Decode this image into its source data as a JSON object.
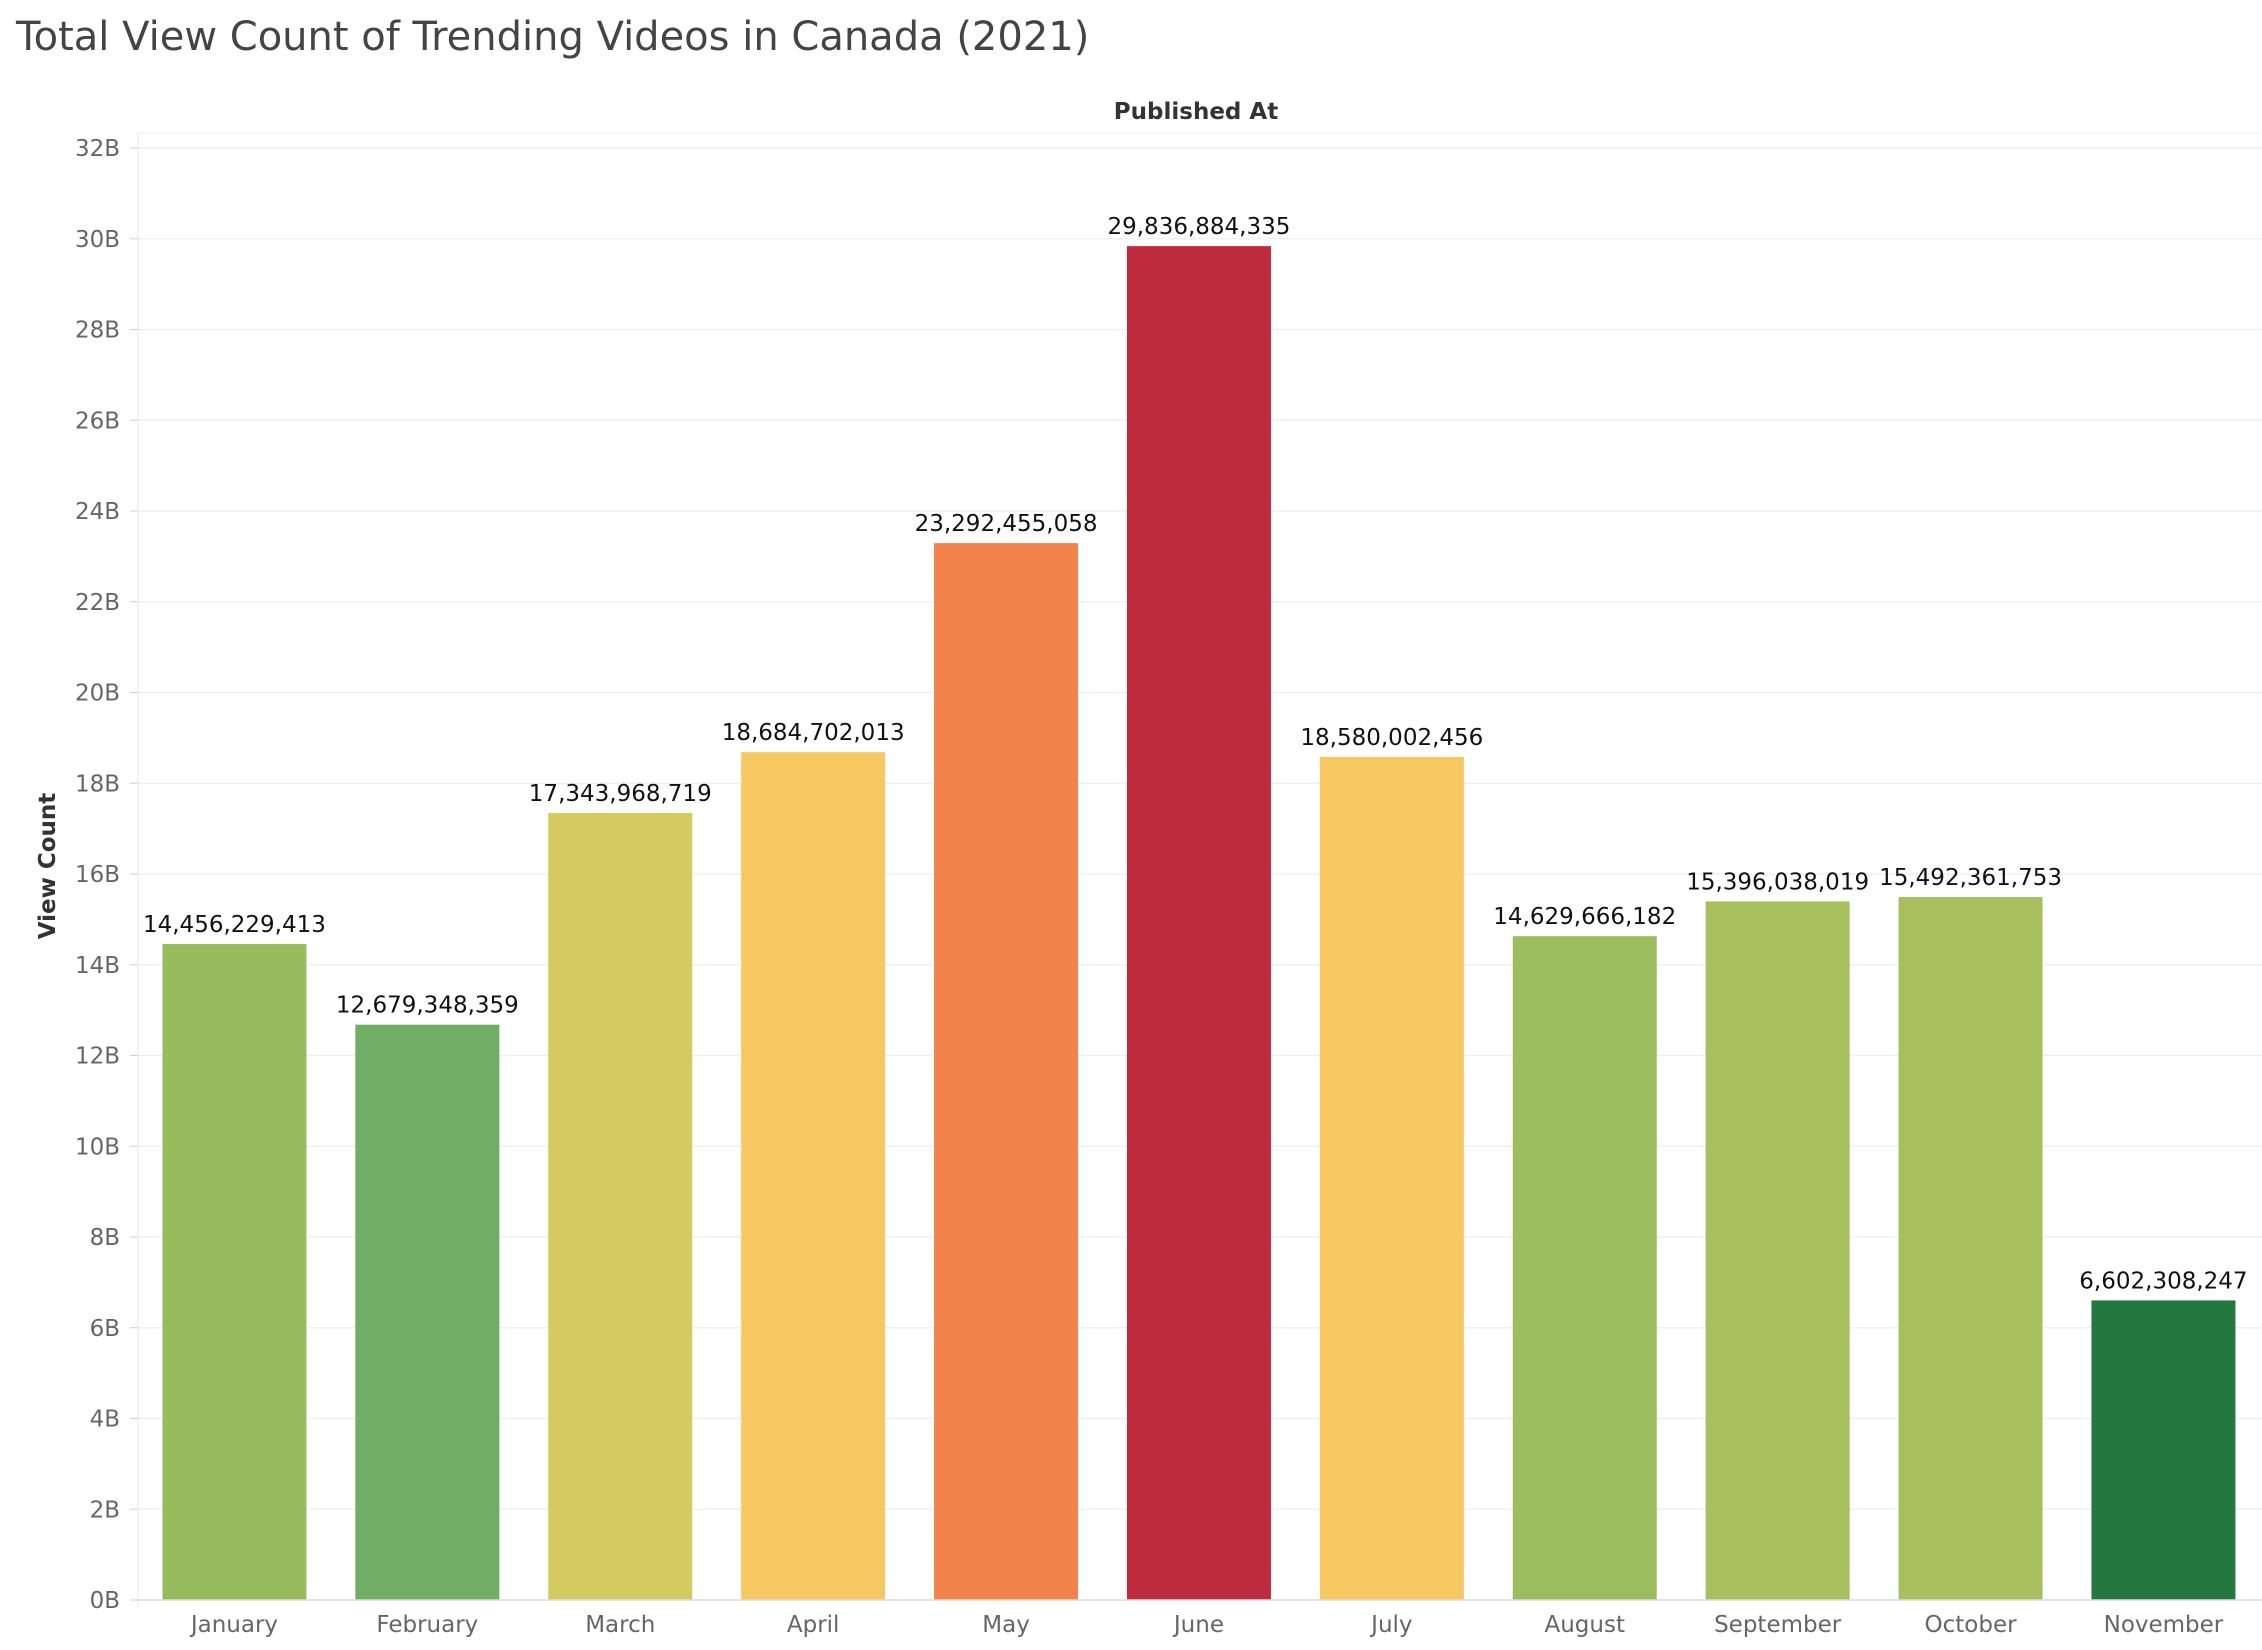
{
  "chart_data": {
    "type": "bar",
    "title": "Total View Count of Trending Videos in Canada (2021)",
    "column_header": "Published At",
    "ylabel": "View Count",
    "ylim": [
      0,
      32000000000
    ],
    "yticks": [
      0,
      2000000000,
      4000000000,
      6000000000,
      8000000000,
      10000000000,
      12000000000,
      14000000000,
      16000000000,
      18000000000,
      20000000000,
      22000000000,
      24000000000,
      26000000000,
      28000000000,
      30000000000,
      32000000000
    ],
    "ytick_labels": [
      "0B",
      "2B",
      "4B",
      "6B",
      "8B",
      "10B",
      "12B",
      "14B",
      "16B",
      "18B",
      "20B",
      "22B",
      "24B",
      "26B",
      "28B",
      "30B",
      "32B"
    ],
    "grid": true,
    "legend": "none",
    "categories": [
      "January",
      "February",
      "March",
      "April",
      "May",
      "June",
      "July",
      "August",
      "September",
      "October",
      "November"
    ],
    "values": [
      14456229413,
      12679348359,
      17343968719,
      18684702013,
      23292455058,
      29836884335,
      18580002456,
      14629666182,
      15396038019,
      15492361753,
      6602308247
    ],
    "value_labels": [
      "14,456,229,413",
      "12,679,348,359",
      "17,343,968,719",
      "18,684,702,013",
      "23,292,455,058",
      "29,836,884,335",
      "18,580,002,456",
      "14,629,666,182",
      "15,396,038,019",
      "15,492,361,753",
      "6,602,308,247"
    ],
    "colors": [
      "#96bc5e",
      "#6fae63",
      "#d4ca60",
      "#f6c862",
      "#f2834b",
      "#be2a3e",
      "#f6c862",
      "#9bbd5e",
      "#a7bf5d",
      "#a7bf5d",
      "#23773f"
    ]
  }
}
